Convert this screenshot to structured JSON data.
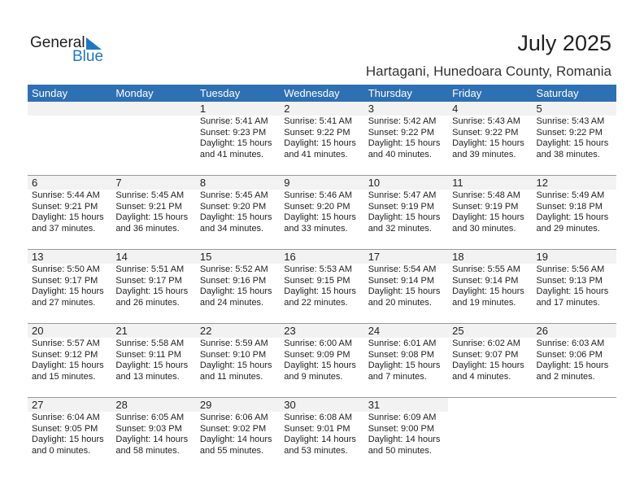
{
  "logo": {
    "general": "General",
    "blue": "Blue"
  },
  "title": "July 2025",
  "location": "Hartagani, Hunedoara County, Romania",
  "weekdays": [
    "Sunday",
    "Monday",
    "Tuesday",
    "Wednesday",
    "Thursday",
    "Friday",
    "Saturday"
  ],
  "colors": {
    "header": "#2e70b4",
    "logo_blue": "#1f77c4"
  },
  "days": [
    {
      "d": "1",
      "rise": "Sunrise: 5:41 AM",
      "set": "Sunset: 9:23 PM",
      "dl": "Daylight: 15 hours",
      "dm": "and 41 minutes."
    },
    {
      "d": "2",
      "rise": "Sunrise: 5:41 AM",
      "set": "Sunset: 9:22 PM",
      "dl": "Daylight: 15 hours",
      "dm": "and 41 minutes."
    },
    {
      "d": "3",
      "rise": "Sunrise: 5:42 AM",
      "set": "Sunset: 9:22 PM",
      "dl": "Daylight: 15 hours",
      "dm": "and 40 minutes."
    },
    {
      "d": "4",
      "rise": "Sunrise: 5:43 AM",
      "set": "Sunset: 9:22 PM",
      "dl": "Daylight: 15 hours",
      "dm": "and 39 minutes."
    },
    {
      "d": "5",
      "rise": "Sunrise: 5:43 AM",
      "set": "Sunset: 9:22 PM",
      "dl": "Daylight: 15 hours",
      "dm": "and 38 minutes."
    },
    {
      "d": "6",
      "rise": "Sunrise: 5:44 AM",
      "set": "Sunset: 9:21 PM",
      "dl": "Daylight: 15 hours",
      "dm": "and 37 minutes."
    },
    {
      "d": "7",
      "rise": "Sunrise: 5:45 AM",
      "set": "Sunset: 9:21 PM",
      "dl": "Daylight: 15 hours",
      "dm": "and 36 minutes."
    },
    {
      "d": "8",
      "rise": "Sunrise: 5:45 AM",
      "set": "Sunset: 9:20 PM",
      "dl": "Daylight: 15 hours",
      "dm": "and 34 minutes."
    },
    {
      "d": "9",
      "rise": "Sunrise: 5:46 AM",
      "set": "Sunset: 9:20 PM",
      "dl": "Daylight: 15 hours",
      "dm": "and 33 minutes."
    },
    {
      "d": "10",
      "rise": "Sunrise: 5:47 AM",
      "set": "Sunset: 9:19 PM",
      "dl": "Daylight: 15 hours",
      "dm": "and 32 minutes."
    },
    {
      "d": "11",
      "rise": "Sunrise: 5:48 AM",
      "set": "Sunset: 9:19 PM",
      "dl": "Daylight: 15 hours",
      "dm": "and 30 minutes."
    },
    {
      "d": "12",
      "rise": "Sunrise: 5:49 AM",
      "set": "Sunset: 9:18 PM",
      "dl": "Daylight: 15 hours",
      "dm": "and 29 minutes."
    },
    {
      "d": "13",
      "rise": "Sunrise: 5:50 AM",
      "set": "Sunset: 9:17 PM",
      "dl": "Daylight: 15 hours",
      "dm": "and 27 minutes."
    },
    {
      "d": "14",
      "rise": "Sunrise: 5:51 AM",
      "set": "Sunset: 9:17 PM",
      "dl": "Daylight: 15 hours",
      "dm": "and 26 minutes."
    },
    {
      "d": "15",
      "rise": "Sunrise: 5:52 AM",
      "set": "Sunset: 9:16 PM",
      "dl": "Daylight: 15 hours",
      "dm": "and 24 minutes."
    },
    {
      "d": "16",
      "rise": "Sunrise: 5:53 AM",
      "set": "Sunset: 9:15 PM",
      "dl": "Daylight: 15 hours",
      "dm": "and 22 minutes."
    },
    {
      "d": "17",
      "rise": "Sunrise: 5:54 AM",
      "set": "Sunset: 9:14 PM",
      "dl": "Daylight: 15 hours",
      "dm": "and 20 minutes."
    },
    {
      "d": "18",
      "rise": "Sunrise: 5:55 AM",
      "set": "Sunset: 9:14 PM",
      "dl": "Daylight: 15 hours",
      "dm": "and 19 minutes."
    },
    {
      "d": "19",
      "rise": "Sunrise: 5:56 AM",
      "set": "Sunset: 9:13 PM",
      "dl": "Daylight: 15 hours",
      "dm": "and 17 minutes."
    },
    {
      "d": "20",
      "rise": "Sunrise: 5:57 AM",
      "set": "Sunset: 9:12 PM",
      "dl": "Daylight: 15 hours",
      "dm": "and 15 minutes."
    },
    {
      "d": "21",
      "rise": "Sunrise: 5:58 AM",
      "set": "Sunset: 9:11 PM",
      "dl": "Daylight: 15 hours",
      "dm": "and 13 minutes."
    },
    {
      "d": "22",
      "rise": "Sunrise: 5:59 AM",
      "set": "Sunset: 9:10 PM",
      "dl": "Daylight: 15 hours",
      "dm": "and 11 minutes."
    },
    {
      "d": "23",
      "rise": "Sunrise: 6:00 AM",
      "set": "Sunset: 9:09 PM",
      "dl": "Daylight: 15 hours",
      "dm": "and 9 minutes."
    },
    {
      "d": "24",
      "rise": "Sunrise: 6:01 AM",
      "set": "Sunset: 9:08 PM",
      "dl": "Daylight: 15 hours",
      "dm": "and 7 minutes."
    },
    {
      "d": "25",
      "rise": "Sunrise: 6:02 AM",
      "set": "Sunset: 9:07 PM",
      "dl": "Daylight: 15 hours",
      "dm": "and 4 minutes."
    },
    {
      "d": "26",
      "rise": "Sunrise: 6:03 AM",
      "set": "Sunset: 9:06 PM",
      "dl": "Daylight: 15 hours",
      "dm": "and 2 minutes."
    },
    {
      "d": "27",
      "rise": "Sunrise: 6:04 AM",
      "set": "Sunset: 9:05 PM",
      "dl": "Daylight: 15 hours",
      "dm": "and 0 minutes."
    },
    {
      "d": "28",
      "rise": "Sunrise: 6:05 AM",
      "set": "Sunset: 9:03 PM",
      "dl": "Daylight: 14 hours",
      "dm": "and 58 minutes."
    },
    {
      "d": "29",
      "rise": "Sunrise: 6:06 AM",
      "set": "Sunset: 9:02 PM",
      "dl": "Daylight: 14 hours",
      "dm": "and 55 minutes."
    },
    {
      "d": "30",
      "rise": "Sunrise: 6:08 AM",
      "set": "Sunset: 9:01 PM",
      "dl": "Daylight: 14 hours",
      "dm": "and 53 minutes."
    },
    {
      "d": "31",
      "rise": "Sunrise: 6:09 AM",
      "set": "Sunset: 9:00 PM",
      "dl": "Daylight: 14 hours",
      "dm": "and 50 minutes."
    }
  ]
}
